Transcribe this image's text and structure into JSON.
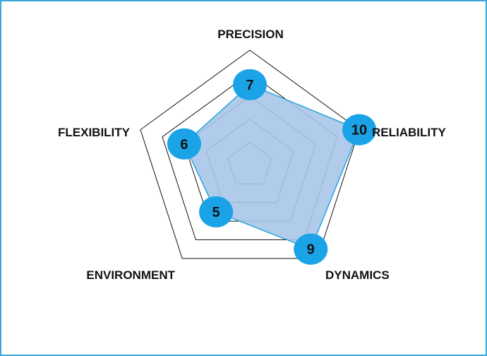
{
  "chart_data": {
    "type": "radar",
    "title": "",
    "categories": [
      "PRECISION",
      "RELIABILITY",
      "DYNAMICS",
      "ENVIRONMENT",
      "FLEXIBILITY"
    ],
    "values": [
      7,
      10,
      9,
      5,
      6
    ],
    "range": [
      0,
      10
    ],
    "rings": [
      2,
      4,
      6,
      8,
      10
    ],
    "grid": true,
    "legend": "none",
    "colors": {
      "fill": "#a9c6e8",
      "fill_opacity": 0.9,
      "outline": "#29a3dd",
      "marker": "#1ba3e8",
      "grid": "#111111",
      "frame": "#3aa8d8"
    }
  }
}
